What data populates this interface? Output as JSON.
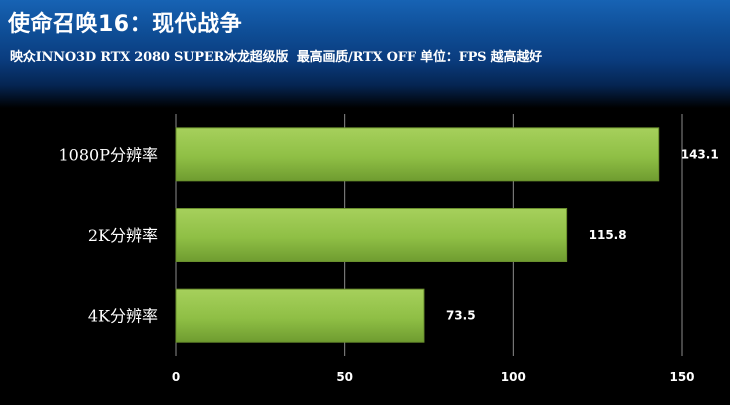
{
  "header": {
    "title": "使命召唤16：现代战争",
    "subtitle": "映众INNO3D RTX 2080 SUPER冰龙超级版  最高画质/RTX OFF 单位：FPS 越高越好"
  },
  "colors": {
    "background": "#000000",
    "bar": "#8fbf45",
    "grid": "#8c8c8c"
  },
  "chart_data": {
    "type": "bar",
    "orientation": "horizontal",
    "categories": [
      "1080P分辨率",
      "2K分辨率",
      "4K分辨率"
    ],
    "values": [
      143.1,
      115.8,
      73.5
    ],
    "value_labels": [
      "143.1",
      "115.8",
      "73.5"
    ],
    "xlim": [
      0,
      150
    ],
    "x_ticks": [
      0,
      50,
      100,
      150
    ],
    "grid": true,
    "legend": "none"
  }
}
